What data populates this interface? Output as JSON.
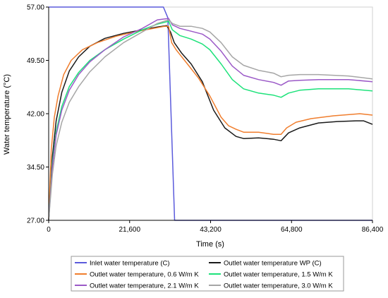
{
  "chart_data": {
    "type": "line",
    "xlabel": "Time (s)",
    "ylabel": "Water temperature (°C)",
    "xlim": [
      0,
      86400
    ],
    "ylim": [
      27,
      57
    ],
    "x_ticks": [
      0,
      21600,
      43200,
      64800,
      86400
    ],
    "x_tick_labels": [
      "0",
      "21,600",
      "43,200",
      "64,800",
      "86,400"
    ],
    "y_ticks": [
      27,
      34.5,
      42,
      49.5,
      57
    ],
    "y_tick_labels": [
      "27.00",
      "34.50",
      "42.00",
      "49.50",
      "57.00"
    ],
    "grid": false,
    "legend_position": "bottom",
    "series": [
      {
        "name": "Inlet water temperature (C)",
        "color": "#5b5bdc",
        "points": [
          [
            0,
            57
          ],
          [
            30600,
            57
          ],
          [
            31800,
            55.5
          ],
          [
            33600,
            27
          ],
          [
            86400,
            27
          ]
        ]
      },
      {
        "name": "Outlet water temperature WP (C)",
        "color": "#1a1a1a",
        "points": [
          [
            0,
            27
          ],
          [
            1000,
            36
          ],
          [
            2000,
            41
          ],
          [
            3500,
            45
          ],
          [
            5500,
            48
          ],
          [
            8000,
            50
          ],
          [
            11000,
            51.5
          ],
          [
            15000,
            52.6
          ],
          [
            20000,
            53.3
          ],
          [
            25000,
            53.8
          ],
          [
            29000,
            54.2
          ],
          [
            31500,
            54.4
          ],
          [
            32500,
            53.5
          ],
          [
            33500,
            52
          ],
          [
            35500,
            50.5
          ],
          [
            38000,
            49
          ],
          [
            41000,
            46.5
          ],
          [
            44000,
            42.5
          ],
          [
            47000,
            40
          ],
          [
            50000,
            38.8
          ],
          [
            52000,
            38.5
          ],
          [
            56000,
            38.6
          ],
          [
            60000,
            38.4
          ],
          [
            62000,
            38.2
          ],
          [
            64000,
            39.3
          ],
          [
            67000,
            40
          ],
          [
            72000,
            40.7
          ],
          [
            77000,
            40.9
          ],
          [
            82000,
            41
          ],
          [
            84000,
            41
          ],
          [
            86400,
            40.5
          ]
        ]
      },
      {
        "name": "Outlet water temperature, 0.6 W/m K",
        "color": "#f07e2e",
        "points": [
          [
            0,
            27
          ],
          [
            700,
            37
          ],
          [
            1500,
            41.5
          ],
          [
            2500,
            44.5
          ],
          [
            4000,
            47.5
          ],
          [
            6000,
            49.5
          ],
          [
            9000,
            51
          ],
          [
            13000,
            52
          ],
          [
            18000,
            52.9
          ],
          [
            23000,
            53.5
          ],
          [
            27000,
            53.9
          ],
          [
            31000,
            54.3
          ],
          [
            32000,
            54.3
          ],
          [
            32800,
            52
          ],
          [
            34000,
            51
          ],
          [
            37000,
            49
          ],
          [
            40000,
            47
          ],
          [
            43000,
            44.5
          ],
          [
            46000,
            41.5
          ],
          [
            48000,
            40.3
          ],
          [
            50000,
            39.8
          ],
          [
            52000,
            39.4
          ],
          [
            56000,
            39.4
          ],
          [
            60000,
            39.1
          ],
          [
            62000,
            39.1
          ],
          [
            63500,
            40
          ],
          [
            66000,
            40.8
          ],
          [
            70000,
            41.3
          ],
          [
            76000,
            41.7
          ],
          [
            83000,
            42
          ],
          [
            86400,
            41.8
          ]
        ]
      },
      {
        "name": "Outlet water temperature, 1.5 W/m K",
        "color": "#1de27a",
        "points": [
          [
            0,
            27
          ],
          [
            1000,
            35
          ],
          [
            2000,
            39.5
          ],
          [
            3500,
            43
          ],
          [
            5500,
            45.8
          ],
          [
            8000,
            47.8
          ],
          [
            11000,
            49.5
          ],
          [
            15000,
            51
          ],
          [
            20000,
            52.5
          ],
          [
            25000,
            53.8
          ],
          [
            29000,
            54.6
          ],
          [
            32000,
            55
          ],
          [
            33000,
            53.8
          ],
          [
            35000,
            53
          ],
          [
            38000,
            52.5
          ],
          [
            41000,
            51.8
          ],
          [
            43000,
            51
          ],
          [
            46000,
            49
          ],
          [
            49000,
            46.8
          ],
          [
            52000,
            45.5
          ],
          [
            56000,
            44.9
          ],
          [
            60000,
            44.6
          ],
          [
            62000,
            44.3
          ],
          [
            64000,
            44.9
          ],
          [
            67000,
            45.3
          ],
          [
            72000,
            45.5
          ],
          [
            80000,
            45.5
          ],
          [
            86400,
            45.2
          ]
        ]
      },
      {
        "name": "Outlet water temperature, 2.1 W/m K",
        "color": "#9b59c7",
        "points": [
          [
            0,
            27
          ],
          [
            1000,
            34.5
          ],
          [
            2000,
            39
          ],
          [
            3500,
            42.5
          ],
          [
            5500,
            45.3
          ],
          [
            8000,
            47.5
          ],
          [
            11000,
            49.3
          ],
          [
            15000,
            51
          ],
          [
            20000,
            52.8
          ],
          [
            25000,
            54
          ],
          [
            29000,
            55.2
          ],
          [
            32000,
            55.4
          ],
          [
            33000,
            54.5
          ],
          [
            35000,
            54
          ],
          [
            38000,
            53.6
          ],
          [
            41000,
            53.2
          ],
          [
            43000,
            52.5
          ],
          [
            46000,
            50.8
          ],
          [
            49000,
            48.7
          ],
          [
            52000,
            47.4
          ],
          [
            56000,
            46.8
          ],
          [
            60000,
            46.4
          ],
          [
            62000,
            46
          ],
          [
            64000,
            46.6
          ],
          [
            67000,
            46.7
          ],
          [
            72000,
            46.8
          ],
          [
            80000,
            46.8
          ],
          [
            86400,
            46.5
          ]
        ]
      },
      {
        "name": "Outlet water temperature, 3.0 W/m K",
        "color": "#a6a6a6",
        "points": [
          [
            0,
            27
          ],
          [
            1000,
            33.5
          ],
          [
            2000,
            37.5
          ],
          [
            3500,
            40.8
          ],
          [
            5500,
            43.6
          ],
          [
            8000,
            45.8
          ],
          [
            11000,
            47.9
          ],
          [
            15000,
            50
          ],
          [
            20000,
            52
          ],
          [
            25000,
            53.5
          ],
          [
            29000,
            54.7
          ],
          [
            32000,
            55.2
          ],
          [
            33000,
            54.7
          ],
          [
            35000,
            54.3
          ],
          [
            38000,
            54.3
          ],
          [
            41000,
            54
          ],
          [
            43000,
            53.5
          ],
          [
            46000,
            52
          ],
          [
            49000,
            50
          ],
          [
            52000,
            48.8
          ],
          [
            56000,
            48.1
          ],
          [
            60000,
            47.7
          ],
          [
            62000,
            47.2
          ],
          [
            64000,
            47.4
          ],
          [
            67000,
            47.5
          ],
          [
            72000,
            47.5
          ],
          [
            80000,
            47.3
          ],
          [
            86400,
            46.9
          ]
        ]
      }
    ]
  }
}
